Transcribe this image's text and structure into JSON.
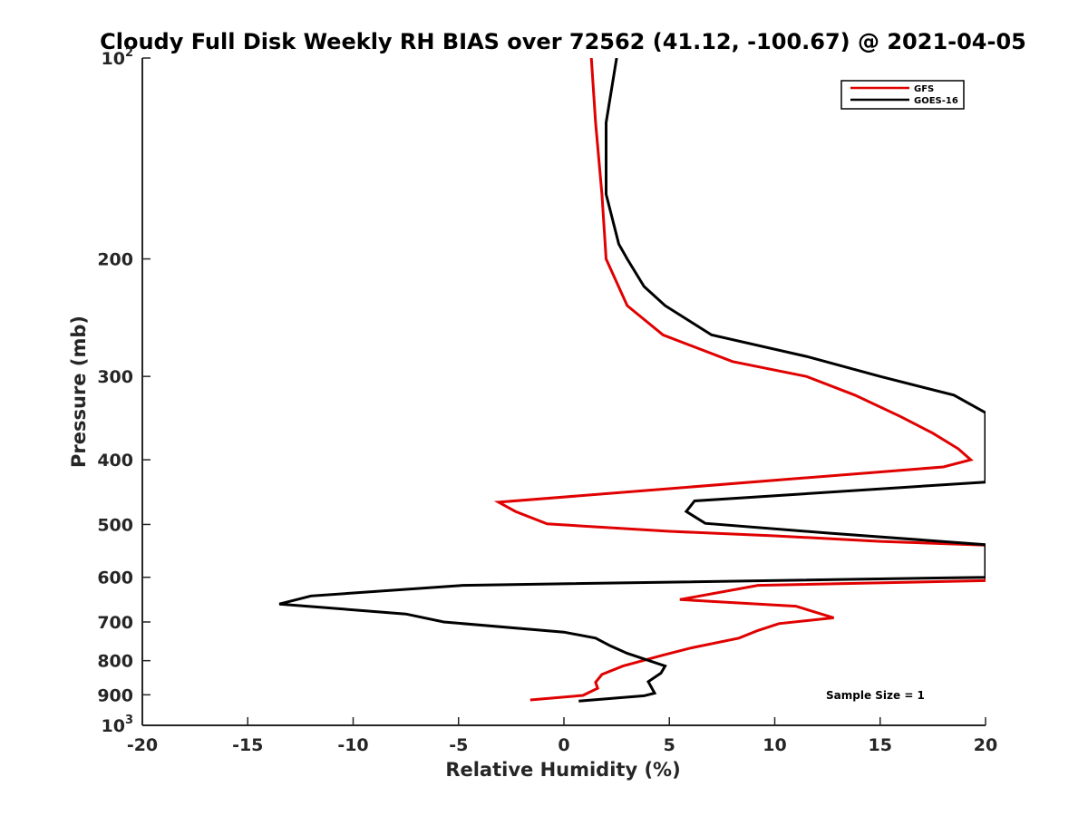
{
  "chart_data": {
    "type": "line",
    "title": "Cloudy Full Disk Weekly RH BIAS over 72562 (41.12, -100.67) @ 2021-04-05",
    "xlabel": "Relative Humidity (%)",
    "ylabel": "Pressure (mb)",
    "xlim": [
      -20,
      20
    ],
    "ylim": [
      100,
      1000
    ],
    "y_scale": "log",
    "y_reversed": true,
    "x_ticks": [
      "-20",
      "-15",
      "-10",
      "-5",
      "0",
      "5",
      "10",
      "15",
      "20"
    ],
    "y_ticks": [
      {
        "value": 100,
        "base": "10",
        "exp": "2"
      },
      {
        "value": 200,
        "base": "200",
        "exp": ""
      },
      {
        "value": 300,
        "base": "300",
        "exp": ""
      },
      {
        "value": 400,
        "base": "400",
        "exp": ""
      },
      {
        "value": 500,
        "base": "500",
        "exp": ""
      },
      {
        "value": 600,
        "base": "600",
        "exp": ""
      },
      {
        "value": 700,
        "base": "700",
        "exp": ""
      },
      {
        "value": 800,
        "base": "800",
        "exp": ""
      },
      {
        "value": 900,
        "base": "900",
        "exp": ""
      },
      {
        "value": 1000,
        "base": "10",
        "exp": "3"
      }
    ],
    "grid": false,
    "legend_position": "top-right",
    "annotation": "Sample Size = 1",
    "series": [
      {
        "name": "GFS",
        "color": "#e00000",
        "points": [
          [
            1.3,
            100
          ],
          [
            1.5,
            125
          ],
          [
            1.8,
            160
          ],
          [
            2.0,
            200
          ],
          [
            3.0,
            235
          ],
          [
            4.7,
            260
          ],
          [
            8.0,
            285
          ],
          [
            11.5,
            300
          ],
          [
            13.8,
            320
          ],
          [
            16.0,
            345
          ],
          [
            17.5,
            365
          ],
          [
            18.7,
            385
          ],
          [
            19.3,
            400
          ],
          [
            18.0,
            410
          ],
          [
            13.8,
            420
          ],
          [
            -3.1,
            463
          ],
          [
            -2.3,
            478
          ],
          [
            -0.8,
            499
          ],
          [
            5.0,
            512
          ],
          [
            10.0,
            520
          ],
          [
            15.0,
            530
          ],
          [
            20.0,
            537
          ],
          [
            20.0,
            607
          ],
          [
            9.2,
            617
          ],
          [
            5.5,
            648
          ],
          [
            11.0,
            663
          ],
          [
            12.8,
            690
          ],
          [
            10.2,
            704
          ],
          [
            9.2,
            721
          ],
          [
            8.3,
            740
          ],
          [
            6.0,
            766
          ],
          [
            4.7,
            785
          ],
          [
            2.8,
            815
          ],
          [
            1.8,
            839
          ],
          [
            1.5,
            862
          ],
          [
            1.6,
            880
          ],
          [
            0.9,
            902
          ],
          [
            -1.6,
            916
          ]
        ]
      },
      {
        "name": "GOES-16",
        "color": "#000000",
        "points": [
          [
            2.5,
            100
          ],
          [
            2.0,
            125
          ],
          [
            2.0,
            160
          ],
          [
            2.6,
            190
          ],
          [
            3.0,
            200
          ],
          [
            3.8,
            220
          ],
          [
            4.8,
            235
          ],
          [
            7.0,
            260
          ],
          [
            11.5,
            280
          ],
          [
            15.0,
            300
          ],
          [
            18.5,
            320
          ],
          [
            20.0,
            340
          ],
          [
            20.0,
            432
          ],
          [
            6.2,
            461
          ],
          [
            5.8,
            478
          ],
          [
            6.7,
            498
          ],
          [
            12.5,
            515
          ],
          [
            20.0,
            536
          ],
          [
            20.0,
            600
          ],
          [
            -4.8,
            617
          ],
          [
            -12.0,
            640
          ],
          [
            -13.5,
            658
          ],
          [
            -7.5,
            681
          ],
          [
            -5.7,
            700
          ],
          [
            0.0,
            725
          ],
          [
            1.5,
            740
          ],
          [
            2.2,
            760
          ],
          [
            3.0,
            780
          ],
          [
            4.8,
            815
          ],
          [
            4.6,
            835
          ],
          [
            4.0,
            860
          ],
          [
            4.3,
            895
          ],
          [
            3.8,
            903
          ],
          [
            0.7,
            920
          ]
        ]
      }
    ]
  }
}
